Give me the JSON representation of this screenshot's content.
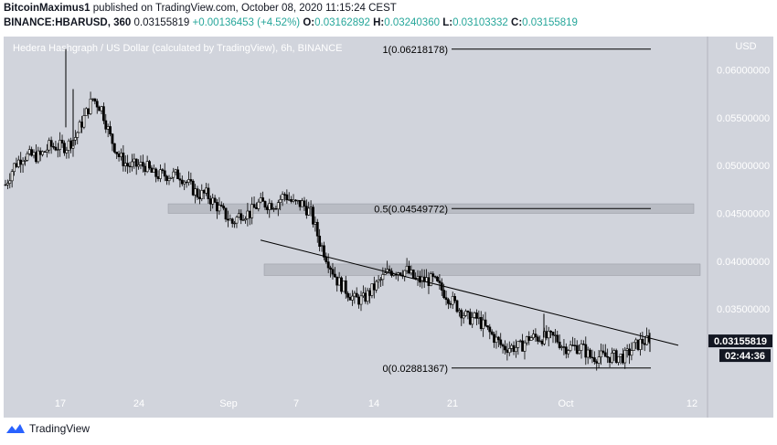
{
  "header": {
    "line1_author": "BitcoinMaximus1",
    "line1_rest": " published on TradingView.com, October 08, 2020 11:15:24 CEST",
    "line2_symbol": "BINANCE:HBARUSD, 360",
    "line2_last": "0.03155819",
    "line2_change": "+0.00136453 (+4.52%)",
    "o_label": "O:",
    "o_value": "0.03162892",
    "h_label": "H:",
    "h_value": "0.03240360",
    "l_label": "L:",
    "l_value": "0.03103332",
    "c_label": "C:",
    "c_value": "0.03155819"
  },
  "chart_title": "Hedera Hashgraph / US Dollar (calculated by TradingView), 6h, BINANCE",
  "currency": "USD",
  "last_price_label": "0.03155819",
  "countdown_label": "02:44:36",
  "branding": "TradingView",
  "colors": {
    "plot_bg": "#d1d4dc",
    "candle": "#000000",
    "zone": "#b9bcc4",
    "last_price_bg": "#131722"
  },
  "chart_data": {
    "type": "candlestick",
    "x_ticks": [
      "17",
      "24",
      "Sep",
      "7",
      "14",
      "21",
      "Oct",
      "12"
    ],
    "y_ticks": [
      "0.04000000",
      "0.04500000",
      "0.05000000",
      "0.05500000",
      "0.06000000",
      "0.03500000"
    ],
    "ylim": [
      0.0265,
      0.0635
    ],
    "fib_levels": [
      {
        "label": "1(0.06218178)",
        "value": 0.06218178
      },
      {
        "label": "0.5(0.04549772)",
        "value": 0.04549772
      },
      {
        "label": "0(0.02881367)",
        "value": 0.02881367
      }
    ],
    "resistance_zones": [
      {
        "low": 0.045,
        "high": 0.046
      },
      {
        "low": 0.0385,
        "high": 0.0397
      }
    ],
    "trendline": {
      "start": [
        "Sep 3",
        0.0422
      ],
      "end": [
        "Oct 11",
        0.0312
      ]
    },
    "closes_approx": [
      0.048,
      0.05,
      0.051,
      0.051,
      0.051,
      0.052,
      0.052,
      0.052,
      0.053,
      0.055,
      0.057,
      0.056,
      0.053,
      0.051,
      0.05,
      0.05,
      0.05,
      0.049,
      0.049,
      0.049,
      0.049,
      0.048,
      0.047,
      0.047,
      0.046,
      0.045,
      0.044,
      0.045,
      0.045,
      0.046,
      0.046,
      0.046,
      0.047,
      0.046,
      0.046,
      0.045,
      0.042,
      0.04,
      0.038,
      0.037,
      0.036,
      0.036,
      0.037,
      0.038,
      0.039,
      0.039,
      0.039,
      0.038,
      0.038,
      0.038,
      0.037,
      0.036,
      0.035,
      0.034,
      0.034,
      0.033,
      0.032,
      0.031,
      0.031,
      0.031,
      0.032,
      0.032,
      0.032,
      0.032,
      0.031,
      0.031,
      0.031,
      0.03,
      0.03,
      0.03,
      0.03,
      0.03,
      0.031,
      0.0316
    ],
    "last_close": 0.03155819
  }
}
